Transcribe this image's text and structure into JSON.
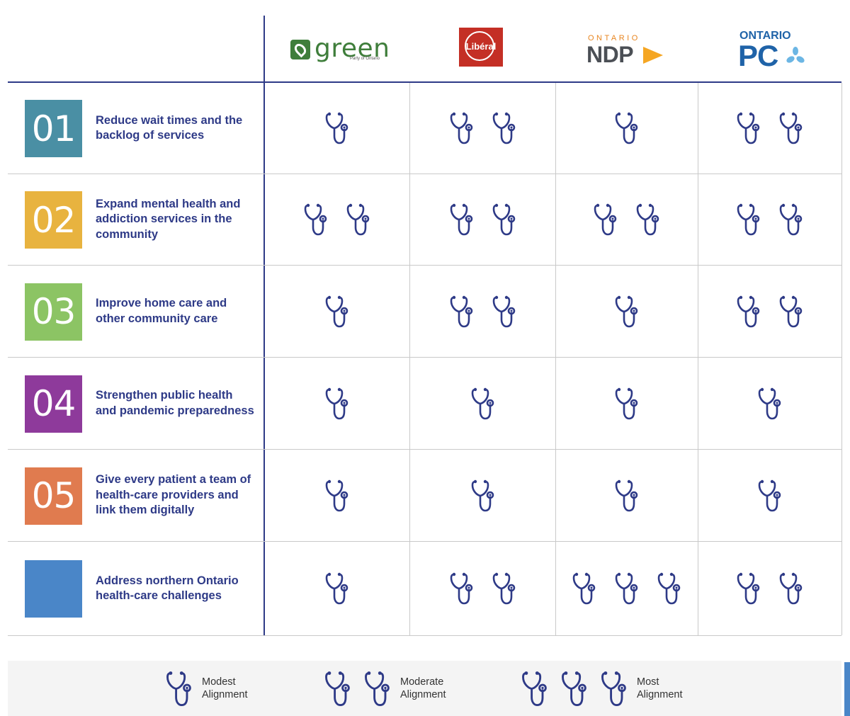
{
  "parties": [
    {
      "key": "green",
      "logo_word": "green",
      "logo_sub": "Party of Ontario"
    },
    {
      "key": "liberal",
      "logo_word": "Libéral"
    },
    {
      "key": "ndp",
      "logo_small": "ONTARIO",
      "logo_word": "NDP"
    },
    {
      "key": "pc",
      "logo_small": "ONTARIO",
      "logo_word": "PC"
    }
  ],
  "priorities": [
    {
      "number": "01",
      "color": "#4a8fa4",
      "label": "Reduce wait times and the backlog of services",
      "ratings": [
        1,
        2,
        1,
        2
      ]
    },
    {
      "number": "02",
      "color": "#e8b33f",
      "label": "Expand mental health and addiction services in the community",
      "ratings": [
        2,
        2,
        2,
        2
      ]
    },
    {
      "number": "03",
      "color": "#8cc464",
      "label": "Improve home care and other community care",
      "ratings": [
        1,
        2,
        1,
        2
      ]
    },
    {
      "number": "04",
      "color": "#8e3a9b",
      "label": "Strengthen public health and pandemic preparedness",
      "ratings": [
        1,
        1,
        1,
        1
      ]
    },
    {
      "number": "05",
      "color": "#e07b4f",
      "label": "Give every patient a team of health-care providers and link them digitally",
      "ratings": [
        1,
        1,
        1,
        1
      ]
    },
    {
      "number": "",
      "color": "#4a86c8",
      "label": "Address northern Ontario health-care challenges",
      "ratings": [
        1,
        2,
        3,
        2
      ]
    }
  ],
  "legend": [
    {
      "count": 1,
      "line1": "Modest",
      "line2": "Alignment"
    },
    {
      "count": 2,
      "line1": "Moderate",
      "line2": "Alignment"
    },
    {
      "count": 3,
      "line1": "Most",
      "line2": "Alignment"
    }
  ],
  "colors": {
    "accent": "#2e3a87",
    "grid": "#c9c9c9",
    "icon": "#2e3a87"
  }
}
